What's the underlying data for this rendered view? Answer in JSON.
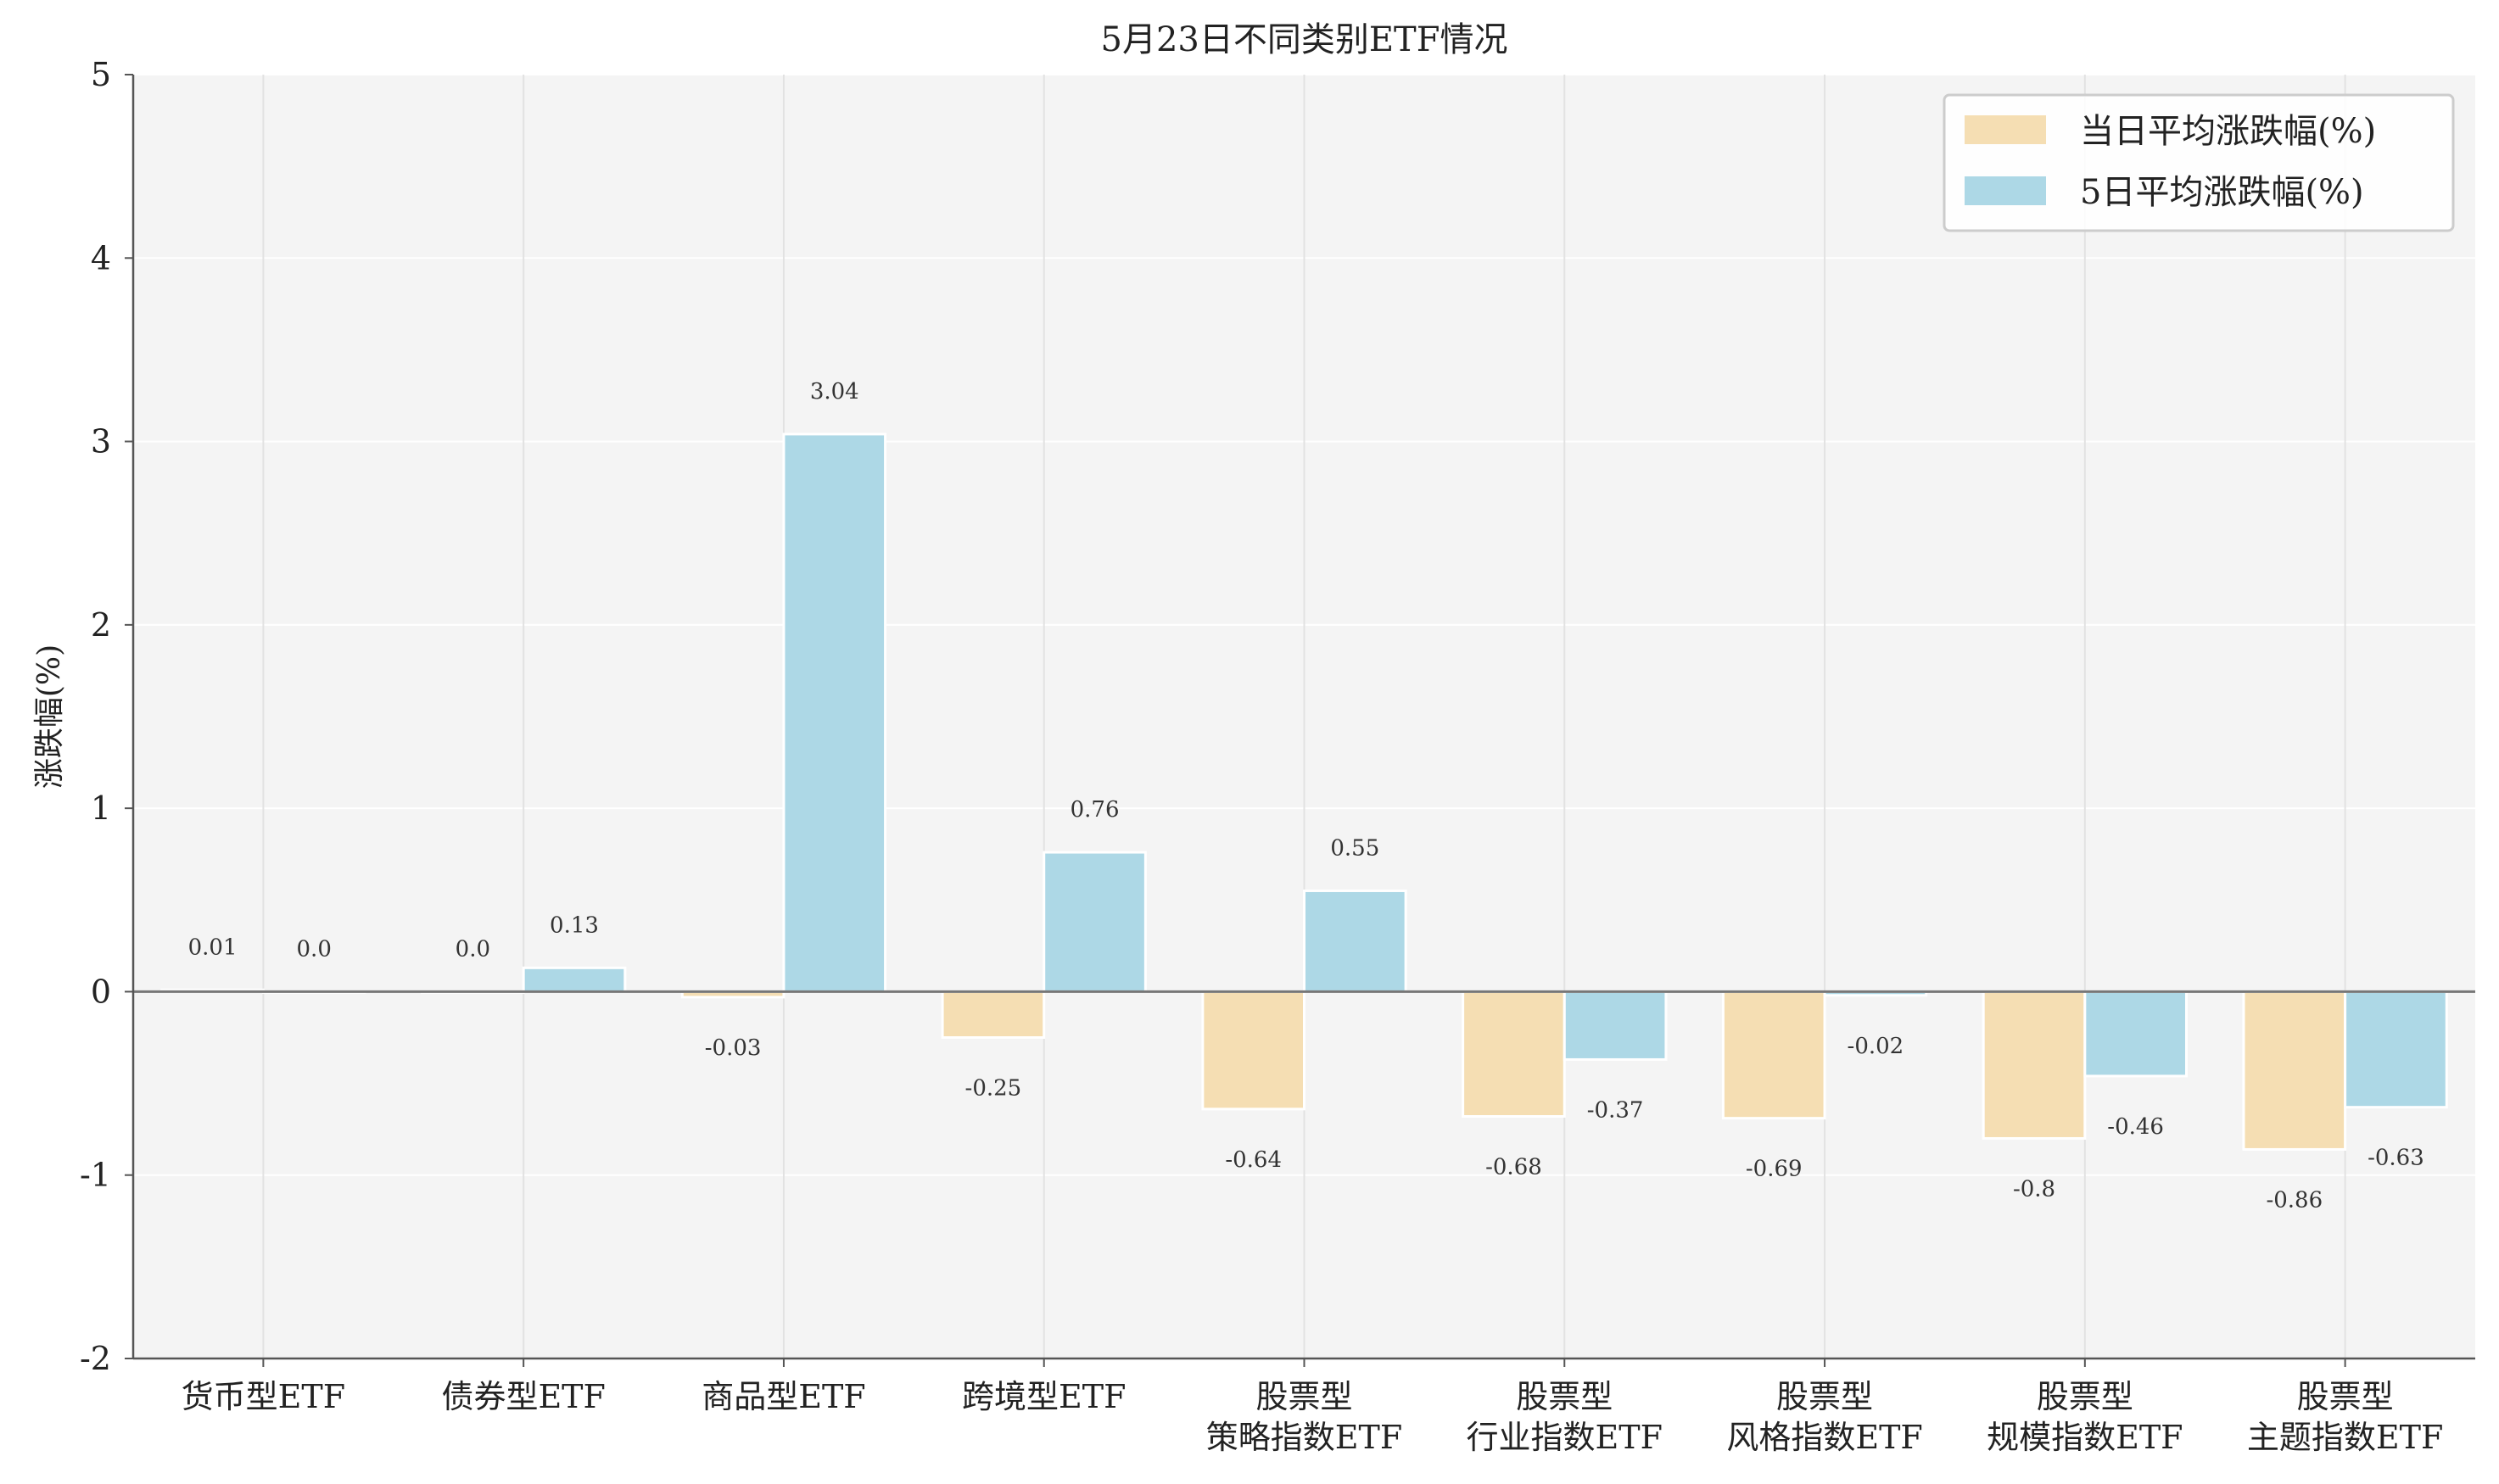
{
  "chart_data": {
    "type": "bar",
    "title": "5月23日不同类别ETF情况",
    "xlabel": "",
    "ylabel": "涨跌幅(%)",
    "ylim": [
      -2,
      5
    ],
    "yticks": [
      -2,
      -1,
      0,
      1,
      2,
      3,
      4,
      5
    ],
    "grid": true,
    "legend_position": "top-right",
    "categories": [
      [
        "货币型ETF"
      ],
      [
        "债券型ETF"
      ],
      [
        "商品型ETF"
      ],
      [
        "跨境型ETF"
      ],
      [
        "股票型",
        "策略指数ETF"
      ],
      [
        "股票型",
        "行业指数ETF"
      ],
      [
        "股票型",
        "风格指数ETF"
      ],
      [
        "股票型",
        "规模指数ETF"
      ],
      [
        "股票型",
        "主题指数ETF"
      ]
    ],
    "series": [
      {
        "name": "当日平均涨跌幅(%)",
        "color": "#f5deb3",
        "values": [
          0.01,
          0.0,
          -0.03,
          -0.25,
          -0.64,
          -0.68,
          -0.69,
          -0.8,
          -0.86
        ],
        "labels": [
          "0.01",
          "0.0",
          "-0.03",
          "-0.25",
          "-0.64",
          "-0.68",
          "-0.69",
          "-0.8",
          "-0.86"
        ]
      },
      {
        "name": "5日平均涨跌幅(%)",
        "color": "#add8e6",
        "values": [
          0.0,
          0.13,
          3.04,
          0.76,
          0.55,
          -0.37,
          -0.02,
          -0.46,
          -0.63
        ],
        "labels": [
          "0.0",
          "0.13",
          "3.04",
          "0.76",
          "0.55",
          "-0.37",
          "-0.02",
          "-0.46",
          "-0.63"
        ]
      }
    ]
  }
}
